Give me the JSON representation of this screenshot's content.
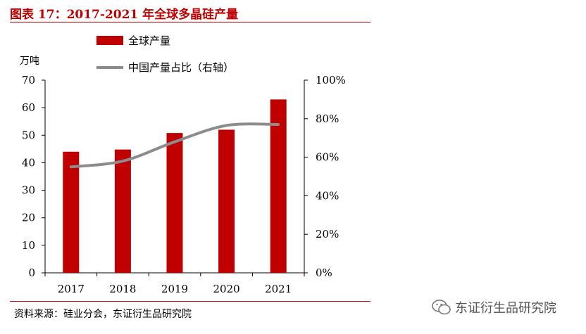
{
  "figure": {
    "title": "图表 17：2017-2021 年全球多晶硅产量",
    "source": "资料来源：硅业分会，东证衍生品研究院",
    "watermark": "东证衍生品研究院",
    "watermark_icon": "wechat-icon"
  },
  "chart_data": {
    "type": "bar",
    "categories": [
      "2017",
      "2018",
      "2019",
      "2020",
      "2021"
    ],
    "series": [
      {
        "name": "全球产量",
        "type": "bar",
        "axis": "left",
        "values": [
          44,
          44.8,
          50.8,
          52,
          63
        ],
        "color": "#c00000"
      },
      {
        "name": "中国产量占比（右轴）",
        "type": "line",
        "axis": "right",
        "values": [
          55,
          58,
          68,
          76.5,
          77
        ],
        "color": "#8c8c8c"
      }
    ],
    "ylabel": "万吨",
    "ylim": [
      0,
      70
    ],
    "yticks": [
      "0",
      "10",
      "20",
      "30",
      "40",
      "50",
      "60",
      "70"
    ],
    "y2lim": [
      0,
      100
    ],
    "y2ticks": [
      "0%",
      "20%",
      "40%",
      "60%",
      "80%",
      "100%"
    ],
    "legend_position": "top-left",
    "grid": false
  }
}
